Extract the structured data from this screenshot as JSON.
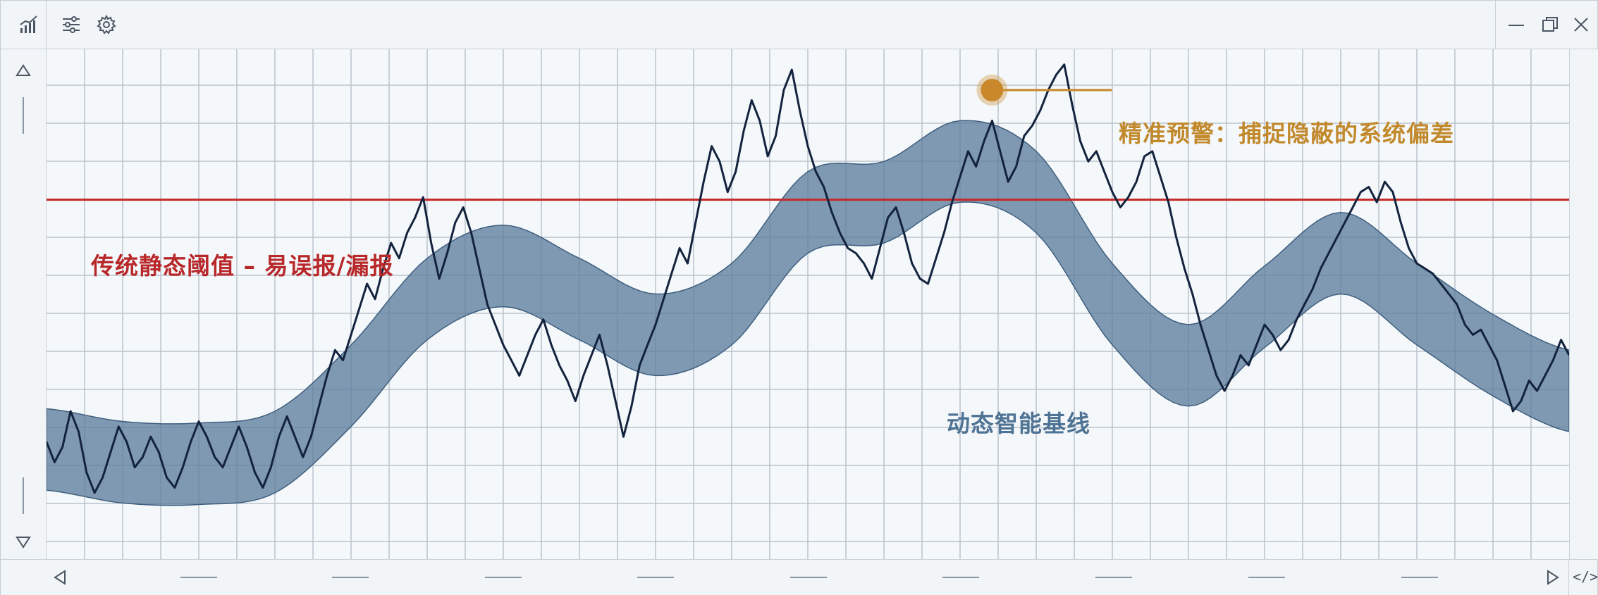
{
  "titlebar": {
    "left_icons": [
      "chart-icon",
      "sliders-icon",
      "gear-icon"
    ],
    "right_icons": [
      "minimize-icon",
      "restore-icon",
      "close-icon"
    ]
  },
  "scroll": {
    "up_icon": "triangle-up-icon",
    "down_icon": "triangle-down-icon",
    "left_icon": "triangle-left-icon",
    "right_icon": "triangle-right-icon",
    "code_toggle": "</>"
  },
  "annotations": {
    "static_threshold": "传统静态阈值 – 易误报/漏报",
    "alert": "精准预警：捕捉隐蔽的系统偏差",
    "baseline": "动态智能基线"
  },
  "colors": {
    "threshold_line": "#c62828",
    "band_fill": "#5c7d9c",
    "signal_line": "#13233e",
    "alert_marker": "#c9892a",
    "grid": "#b9c2cc"
  },
  "chart_data": {
    "type": "line",
    "title": "",
    "xlabel": "",
    "ylabel": "",
    "grid": true,
    "xlim": [
      0,
      100
    ],
    "ylim": [
      0,
      100
    ],
    "threshold": 70.5,
    "alert_point": {
      "x": 62.1,
      "y": 92
    },
    "band_center": {
      "x": [
        0,
        5,
        10,
        15,
        20,
        25,
        30,
        35,
        40,
        45,
        50,
        55,
        60,
        65,
        70,
        75,
        80,
        85,
        90,
        95,
        100
      ],
      "y": [
        21.5,
        19,
        18.7,
        21,
        34,
        51,
        57.5,
        51,
        44,
        50,
        68,
        70,
        78,
        72,
        50,
        38,
        49.5,
        60,
        50,
        40,
        33
      ]
    },
    "band_halfwidth": 8,
    "series": [
      {
        "values": [
          23,
          19,
          22,
          29,
          25,
          17,
          13,
          16,
          21,
          26,
          23,
          18,
          20,
          24,
          21,
          16,
          14,
          18,
          23,
          27,
          24,
          20,
          18,
          22,
          26,
          22,
          17,
          14,
          18,
          24,
          28,
          24,
          20,
          24,
          30,
          36,
          41,
          39,
          44,
          49,
          54,
          51,
          57,
          62,
          59,
          64,
          67,
          71,
          62,
          55,
          60,
          66,
          69,
          64,
          57,
          50,
          46,
          42,
          39,
          36,
          40,
          44,
          47,
          42,
          38,
          35,
          31,
          36,
          40,
          44,
          38,
          31,
          24,
          30,
          38,
          42,
          46,
          51,
          56,
          61,
          58,
          66,
          74,
          81,
          78,
          72,
          76,
          84,
          90,
          86,
          79,
          83,
          92,
          96,
          88,
          81,
          76,
          73,
          68,
          64,
          61,
          60,
          58,
          55,
          61,
          67,
          69,
          64,
          58,
          55,
          54,
          59,
          64,
          70,
          75,
          80,
          77,
          82,
          86,
          80,
          74,
          77,
          83,
          85,
          88,
          92,
          95,
          97,
          89,
          82,
          78,
          80,
          76,
          72,
          69,
          71,
          74,
          79,
          80,
          75,
          70,
          63,
          57,
          52,
          46,
          41,
          36,
          33,
          36,
          40,
          38,
          42,
          46,
          44,
          41,
          43,
          47,
          50,
          53,
          57,
          60,
          63,
          66,
          69,
          72,
          73,
          70,
          74,
          72,
          66,
          61,
          58,
          57,
          56,
          54,
          52,
          50,
          46,
          44,
          45,
          42,
          39,
          34,
          29,
          31,
          35,
          33,
          36,
          39,
          43,
          40
        ]
      }
    ]
  }
}
